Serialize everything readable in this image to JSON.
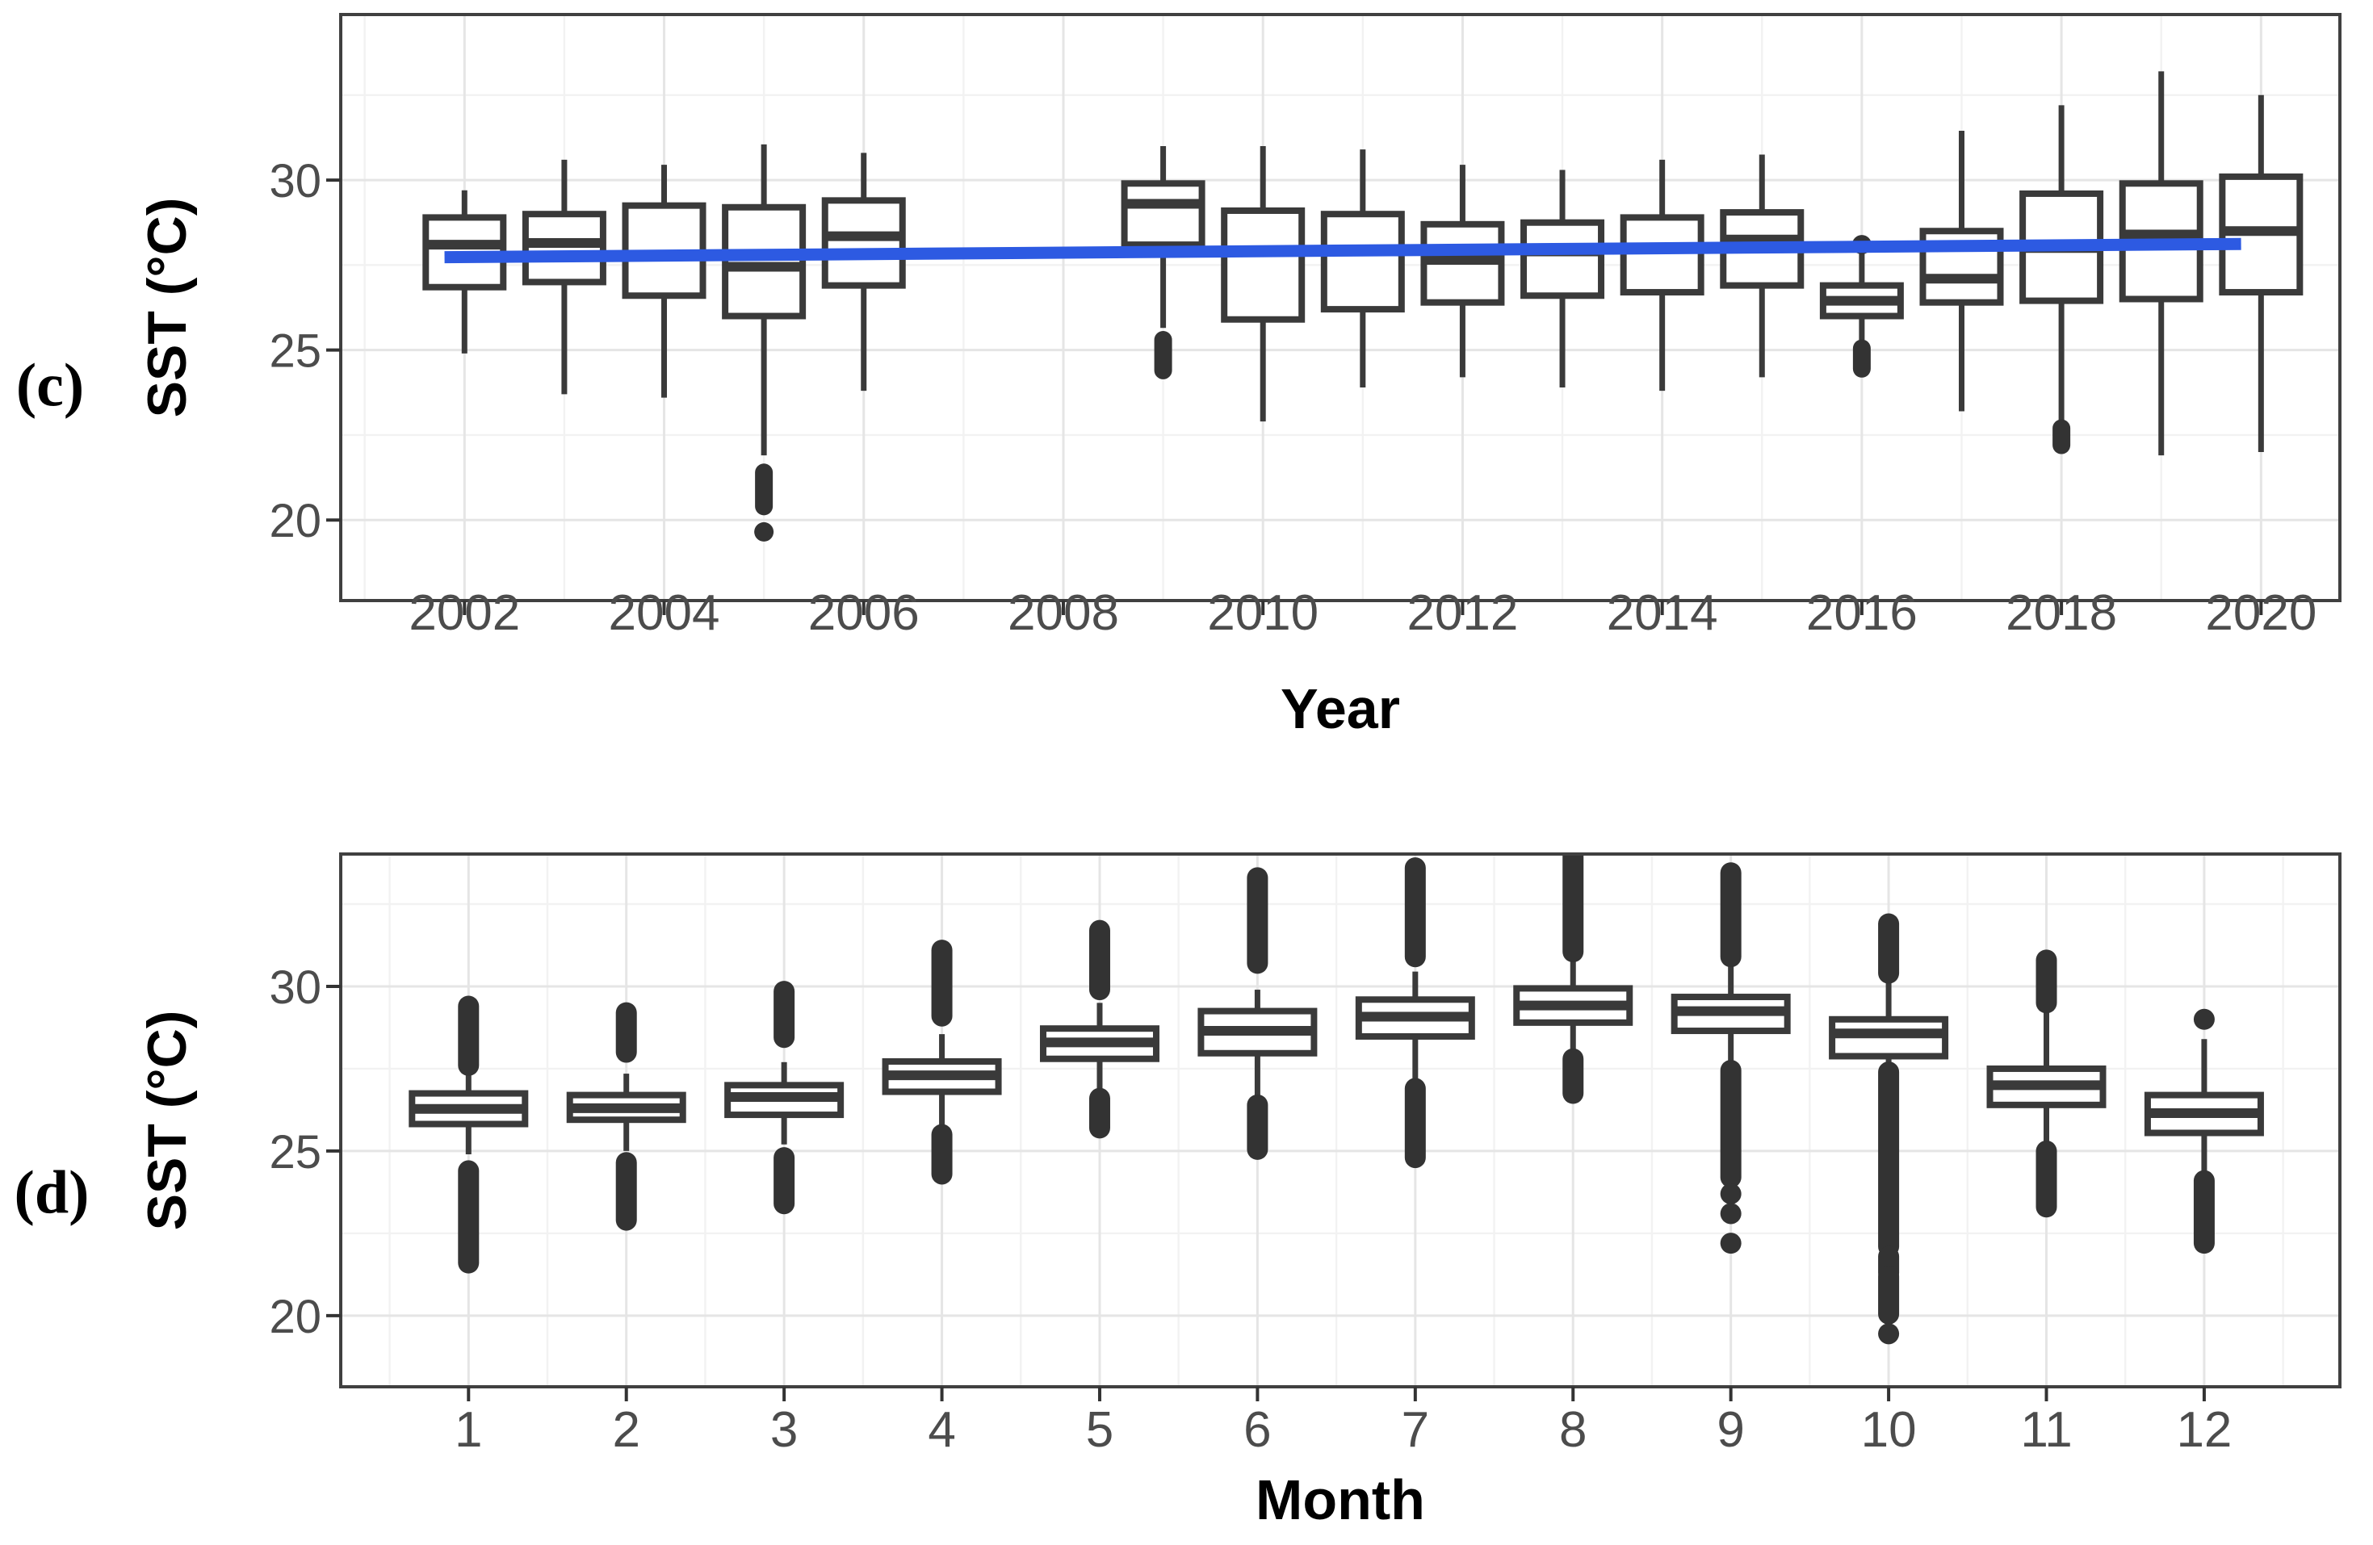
{
  "figure": {
    "background": "#ffffff",
    "panel_c_tag": "(c)",
    "panel_d_tag": "(d)"
  },
  "colors": {
    "box_stroke": "#3a3a3a",
    "box_fill": "#ffffff",
    "outlier": "#333333",
    "trend_line": "#2d5ae2",
    "grid_major": "#e5e5e5",
    "grid_minor": "#f2f2f2",
    "panel_border": "#404040",
    "tick_mark": "#333333",
    "tick_text": "#4c4c4c",
    "title_text": "#000000"
  },
  "chart_data": [
    {
      "id": "c",
      "type": "box",
      "tag": "(c)",
      "xlabel": "Year",
      "ylabel": "SST (°C)",
      "grid": true,
      "x_ticks": [
        2002,
        2004,
        2006,
        2008,
        2010,
        2012,
        2014,
        2016,
        2018,
        2020
      ],
      "x_minor": [
        2001,
        2003,
        2005,
        2007,
        2009,
        2011,
        2013,
        2015,
        2017,
        2019,
        2021
      ],
      "y_ticks": [
        20,
        25,
        30
      ],
      "y_minor": [
        22.5,
        27.5,
        32.5
      ],
      "xlim": [
        2000.76,
        2020.79
      ],
      "ylim": [
        17.63,
        34.87
      ],
      "trend": {
        "x": [
          2001.8,
          2019.8
        ],
        "y": [
          27.73,
          28.12
        ]
      },
      "boxes": [
        {
          "x": 2002,
          "lo": 24.9,
          "q1": 26.85,
          "med": 28.1,
          "q3": 28.9,
          "hi": 29.7,
          "out_lo": [],
          "out_hi": []
        },
        {
          "x": 2003,
          "lo": 23.7,
          "q1": 27.0,
          "med": 28.15,
          "q3": 29.0,
          "hi": 30.6,
          "out_lo": [],
          "out_hi": []
        },
        {
          "x": 2004,
          "lo": 23.6,
          "q1": 26.6,
          "med": 27.9,
          "q3": 29.25,
          "hi": 30.45,
          "out_lo": [],
          "out_hi": [],
          "median_hidden": true
        },
        {
          "x": 2005,
          "lo": 21.9,
          "q1": 26.0,
          "med": 27.45,
          "q3": 29.2,
          "hi": 31.05,
          "out_lo": [
            [
              20.4,
              21.4
            ],
            19.65
          ],
          "out_hi": []
        },
        {
          "x": 2006,
          "lo": 23.8,
          "q1": 26.9,
          "med": 28.35,
          "q3": 29.4,
          "hi": 30.8,
          "out_lo": [],
          "out_hi": []
        },
        {
          "x": 2009,
          "lo": 25.65,
          "q1": 28.1,
          "med": 29.3,
          "q3": 29.9,
          "hi": 31.0,
          "out_lo": [
            [
              24.4,
              25.3
            ]
          ],
          "out_hi": []
        },
        {
          "x": 2010,
          "lo": 22.9,
          "q1": 25.9,
          "med": 27.9,
          "q3": 29.1,
          "hi": 31.0,
          "out_lo": [],
          "out_hi": [],
          "median_hidden": true
        },
        {
          "x": 2011,
          "lo": 23.9,
          "q1": 26.2,
          "med": 27.9,
          "q3": 29.0,
          "hi": 30.9,
          "out_lo": [],
          "out_hi": []
        },
        {
          "x": 2012,
          "lo": 24.2,
          "q1": 26.4,
          "med": 27.65,
          "q3": 28.7,
          "hi": 30.45,
          "out_lo": [],
          "out_hi": []
        },
        {
          "x": 2013,
          "lo": 23.9,
          "q1": 26.6,
          "med": 27.9,
          "q3": 28.75,
          "hi": 30.3,
          "out_lo": [],
          "out_hi": []
        },
        {
          "x": 2014,
          "lo": 23.8,
          "q1": 26.7,
          "med": 28.0,
          "q3": 28.9,
          "hi": 30.6,
          "out_lo": [],
          "out_hi": []
        },
        {
          "x": 2015,
          "lo": 24.2,
          "q1": 26.9,
          "med": 28.25,
          "q3": 29.05,
          "hi": 30.75,
          "out_lo": [],
          "out_hi": []
        },
        {
          "x": 2016,
          "lo": 25.3,
          "q1": 26.0,
          "med": 26.45,
          "q3": 26.9,
          "hi": 27.9,
          "out_lo": [
            [
              24.45,
              25.05
            ]
          ],
          "out_hi": [
            28.1
          ]
        },
        {
          "x": 2017,
          "lo": 23.2,
          "q1": 26.4,
          "med": 27.1,
          "q3": 28.5,
          "hi": 31.45,
          "out_lo": [],
          "out_hi": []
        },
        {
          "x": 2018,
          "lo": 22.9,
          "q1": 26.45,
          "med": 28.0,
          "q3": 29.6,
          "hi": 32.2,
          "out_lo": [
            [
              22.2,
              22.7
            ]
          ],
          "out_hi": []
        },
        {
          "x": 2019,
          "lo": 21.9,
          "q1": 26.5,
          "med": 28.4,
          "q3": 29.9,
          "hi": 33.2,
          "out_lo": [],
          "out_hi": []
        },
        {
          "x": 2020,
          "lo": 22.0,
          "q1": 26.7,
          "med": 28.5,
          "q3": 30.1,
          "hi": 32.5,
          "out_lo": [],
          "out_hi": []
        }
      ]
    },
    {
      "id": "d",
      "type": "box",
      "tag": "(d)",
      "xlabel": "Month",
      "ylabel": "SST (°C)",
      "grid": true,
      "x_ticks": [
        1,
        2,
        3,
        4,
        5,
        6,
        7,
        8,
        9,
        10,
        11,
        12
      ],
      "x_minor": [
        0.5,
        1.5,
        2.5,
        3.5,
        4.5,
        5.5,
        6.5,
        7.5,
        8.5,
        9.5,
        10.5,
        11.5,
        12.5
      ],
      "y_ticks": [
        20,
        25,
        30
      ],
      "y_minor": [
        22.5,
        27.5,
        32.5
      ],
      "xlim": [
        0.19,
        12.86
      ],
      "ylim": [
        17.84,
        34.02
      ],
      "trend": null,
      "boxes": [
        {
          "x": 1,
          "lo": 24.9,
          "q1": 25.82,
          "med": 26.28,
          "q3": 26.75,
          "hi": 27.3,
          "out_hi": [
            [
              27.6,
              29.4
            ]
          ],
          "out_lo": [
            [
              21.6,
              24.4
            ]
          ]
        },
        {
          "x": 2,
          "lo": 25.0,
          "q1": 25.95,
          "med": 26.3,
          "q3": 26.7,
          "hi": 27.35,
          "out_hi": [
            [
              28.0,
              29.2
            ]
          ],
          "out_lo": [
            [
              22.9,
              24.65
            ]
          ]
        },
        {
          "x": 3,
          "lo": 25.2,
          "q1": 26.1,
          "med": 26.64,
          "q3": 27.0,
          "hi": 27.7,
          "out_hi": [
            [
              28.45,
              29.85
            ]
          ],
          "out_lo": [
            [
              23.4,
              24.8
            ]
          ]
        },
        {
          "x": 4,
          "lo": 25.8,
          "q1": 26.8,
          "med": 27.3,
          "q3": 27.72,
          "hi": 28.55,
          "out_hi": [
            [
              29.1,
              31.1
            ]
          ],
          "out_lo": [
            [
              24.3,
              25.5
            ]
          ]
        },
        {
          "x": 5,
          "lo": 26.8,
          "q1": 27.8,
          "med": 28.3,
          "q3": 28.72,
          "hi": 29.5,
          "out_hi": [
            [
              29.9,
              31.7
            ]
          ],
          "out_lo": [
            [
              25.7,
              26.6
            ]
          ]
        },
        {
          "x": 6,
          "lo": 26.5,
          "q1": 27.97,
          "med": 28.65,
          "q3": 29.25,
          "hi": 29.9,
          "out_hi": [
            [
              30.7,
              33.3
            ]
          ],
          "out_lo": [
            [
              25.05,
              26.4
            ]
          ]
        },
        {
          "x": 7,
          "lo": 27.0,
          "q1": 28.48,
          "med": 29.08,
          "q3": 29.6,
          "hi": 30.45,
          "out_hi": [
            [
              30.9,
              33.6
            ]
          ],
          "out_lo": [
            [
              24.8,
              26.9
            ]
          ]
        },
        {
          "x": 8,
          "lo": 27.85,
          "q1": 28.9,
          "med": 29.42,
          "q3": 29.94,
          "hi": 30.8,
          "out_hi": [
            [
              31.05,
              33.95
            ]
          ],
          "out_lo": [
            [
              26.75,
              27.8
            ]
          ]
        },
        {
          "x": 9,
          "lo": 27.6,
          "q1": 28.65,
          "med": 29.25,
          "q3": 29.68,
          "hi": 30.6,
          "out_hi": [
            [
              30.9,
              33.45
            ]
          ],
          "out_lo": [
            [
              24.2,
              27.45
            ],
            23.7,
            23.1,
            22.2
          ]
        },
        {
          "x": 10,
          "lo": 27.45,
          "q1": 27.88,
          "med": 28.57,
          "q3": 29.0,
          "hi": 30.2,
          "out_hi": [
            [
              30.4,
              31.9
            ]
          ],
          "out_lo": [
            [
              22.1,
              27.4
            ],
            [
              21.3,
              21.8
            ],
            [
              20.05,
              21.2
            ],
            19.45
          ]
        },
        {
          "x": 11,
          "lo": 25.1,
          "q1": 26.4,
          "med": 27.0,
          "q3": 27.5,
          "hi": 29.3,
          "out_hi": [
            [
              29.5,
              30.8
            ]
          ],
          "out_lo": [
            [
              23.3,
              25.0
            ]
          ]
        },
        {
          "x": 12,
          "lo": 24.3,
          "q1": 25.55,
          "med": 26.15,
          "q3": 26.7,
          "hi": 28.4,
          "out_hi": [
            29.0
          ],
          "out_lo": [
            [
              22.2,
              24.1
            ]
          ]
        }
      ]
    }
  ]
}
